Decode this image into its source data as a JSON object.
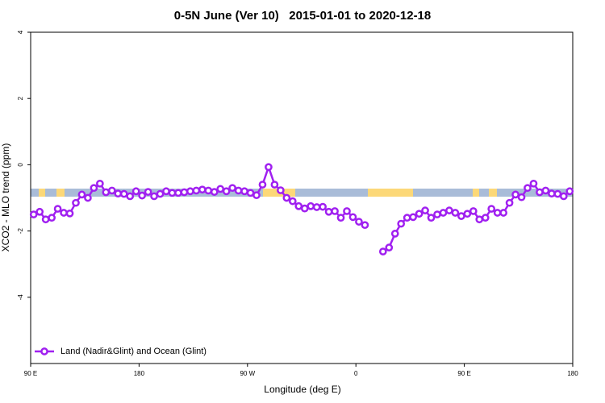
{
  "chart_data": {
    "type": "line",
    "title": "0-5N June (Ver 10)   2015-01-01 to 2020-12-18",
    "xlabel": "Longitude (deg E)",
    "ylabel": "XCO2 - MLO trend (ppm)",
    "x": [
      92.5,
      97.5,
      102.5,
      107.5,
      112.5,
      117.5,
      122.5,
      127.5,
      132.5,
      137.5,
      142.5,
      147.5,
      152.5,
      157.5,
      162.5,
      167.5,
      172.5,
      177.5,
      182.5,
      187.5,
      192.5,
      197.5,
      202.5,
      207.5,
      212.5,
      217.5,
      222.5,
      227.5,
      232.5,
      237.5,
      242.5,
      247.5,
      252.5,
      257.5,
      262.5,
      267.5,
      272.5,
      277.5,
      282.5,
      287.5,
      292.5,
      297.5,
      302.5,
      307.5,
      312.5,
      317.5,
      322.5,
      327.5,
      332.5,
      337.5,
      342.5,
      347.5,
      352.5,
      357.5,
      362.5,
      367.5,
      372.5,
      377.5,
      382.5,
      387.5,
      392.5,
      397.5,
      402.5,
      407.5,
      412.5,
      417.5,
      422.5,
      427.5,
      432.5,
      437.5,
      442.5,
      447.5,
      452.5,
      457.5,
      462.5,
      467.5,
      472.5,
      477.5,
      482.5,
      487.5,
      492.5,
      497.5,
      502.5,
      507.5,
      512.5,
      517.5,
      522.5,
      527.5,
      532.5,
      537.5
    ],
    "series": [
      {
        "name": "Land (Nadir&Glint) and Ocean (Glint)",
        "color": "#a020f0",
        "values": [
          -1.5,
          -1.42,
          -1.65,
          -1.6,
          -1.33,
          -1.45,
          -1.47,
          -1.15,
          -0.9,
          -1.0,
          -0.7,
          -0.57,
          -0.83,
          -0.78,
          -0.87,
          -0.88,
          -0.95,
          -0.8,
          -0.93,
          -0.82,
          -0.95,
          -0.88,
          -0.8,
          -0.85,
          -0.85,
          -0.83,
          -0.8,
          -0.78,
          -0.75,
          -0.78,
          -0.82,
          -0.73,
          -0.8,
          -0.7,
          -0.78,
          -0.8,
          -0.85,
          -0.92,
          -0.6,
          -0.07,
          -0.6,
          -0.77,
          -1.0,
          -1.1,
          -1.25,
          -1.32,
          -1.25,
          -1.28,
          -1.27,
          -1.42,
          -1.4,
          -1.6,
          -1.4,
          -1.58,
          -1.72,
          -1.82,
          null,
          null,
          -2.62,
          -2.5,
          -2.08,
          -1.78,
          -1.6,
          -1.58,
          -1.48,
          -1.38,
          -1.6,
          -1.5,
          -1.45,
          -1.38,
          -1.45,
          -1.55,
          -1.48,
          -1.4,
          -1.65,
          -1.6,
          -1.33,
          -1.45,
          -1.45,
          -1.15,
          -0.9,
          -0.98,
          -0.7,
          -0.57,
          -0.83,
          -0.78,
          -0.87,
          -0.88,
          -0.95,
          -0.8
        ]
      }
    ],
    "xlim": [
      90,
      540
    ],
    "xticks": [
      {
        "value": 90,
        "label": "90 E"
      },
      180,
      {
        "value": 270,
        "label": "90 W"
      },
      {
        "value": 360,
        "label": "0"
      },
      {
        "value": 450,
        "label": "90 E"
      },
      {
        "value": 540,
        "label": "180"
      }
    ],
    "ylim": [
      -6,
      4
    ],
    "yticks": [
      4,
      2,
      0,
      -2,
      -4
    ],
    "legend": "bottom-left"
  }
}
